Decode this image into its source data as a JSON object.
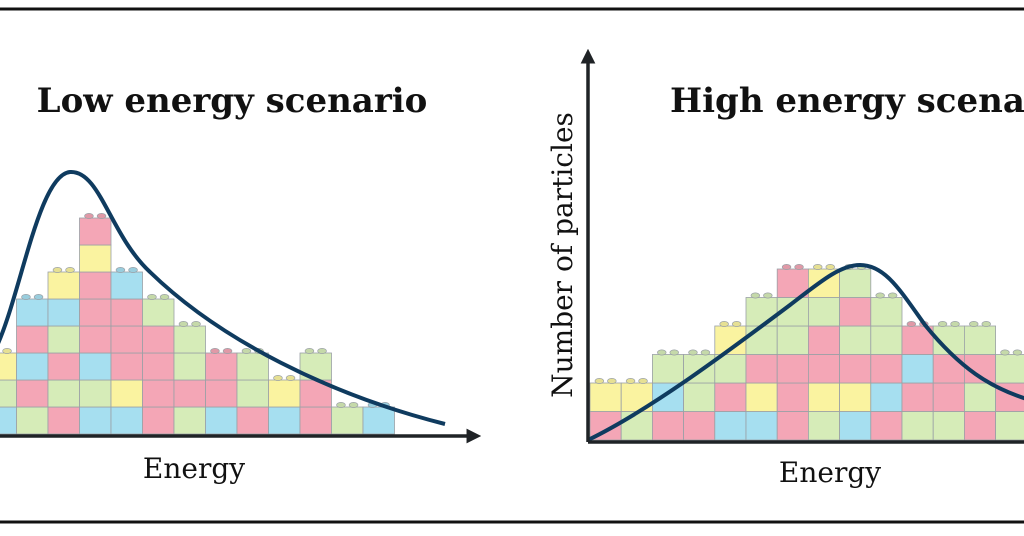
{
  "colors": {
    "frame": "#111111",
    "axis": "#1f2326",
    "curve": "#0f3b5f",
    "block_outline": "#9aa0a6",
    "palette": {
      "p": "#f4a6b6",
      "b": "#a6dff0",
      "g": "#d6ecb8",
      "y": "#faf3a0"
    }
  },
  "panels": [
    {
      "title": "Low energy scenario",
      "xlabel": "Energy",
      "ylabel": "",
      "columns": [
        "bgy",
        "gpbpb",
        "pgpgby",
        "bgbpppyp",
        "bypppb",
        "ppppg",
        "gpgg",
        "bpp",
        "pgg",
        "by",
        "ppg",
        "g",
        "b"
      ]
    },
    {
      "title": "High energy scenario",
      "xlabel": "Energy",
      "ylabel": "Number of particles",
      "columns": [
        "py",
        "gy",
        "pbg",
        "pgg",
        "bpgy",
        "bypgg",
        "pppggp",
        "gyppgy",
        "bypgpg",
        "pbpgg",
        "gpbp",
        "gppg",
        "pgpg",
        "gpg"
      ]
    }
  ]
}
